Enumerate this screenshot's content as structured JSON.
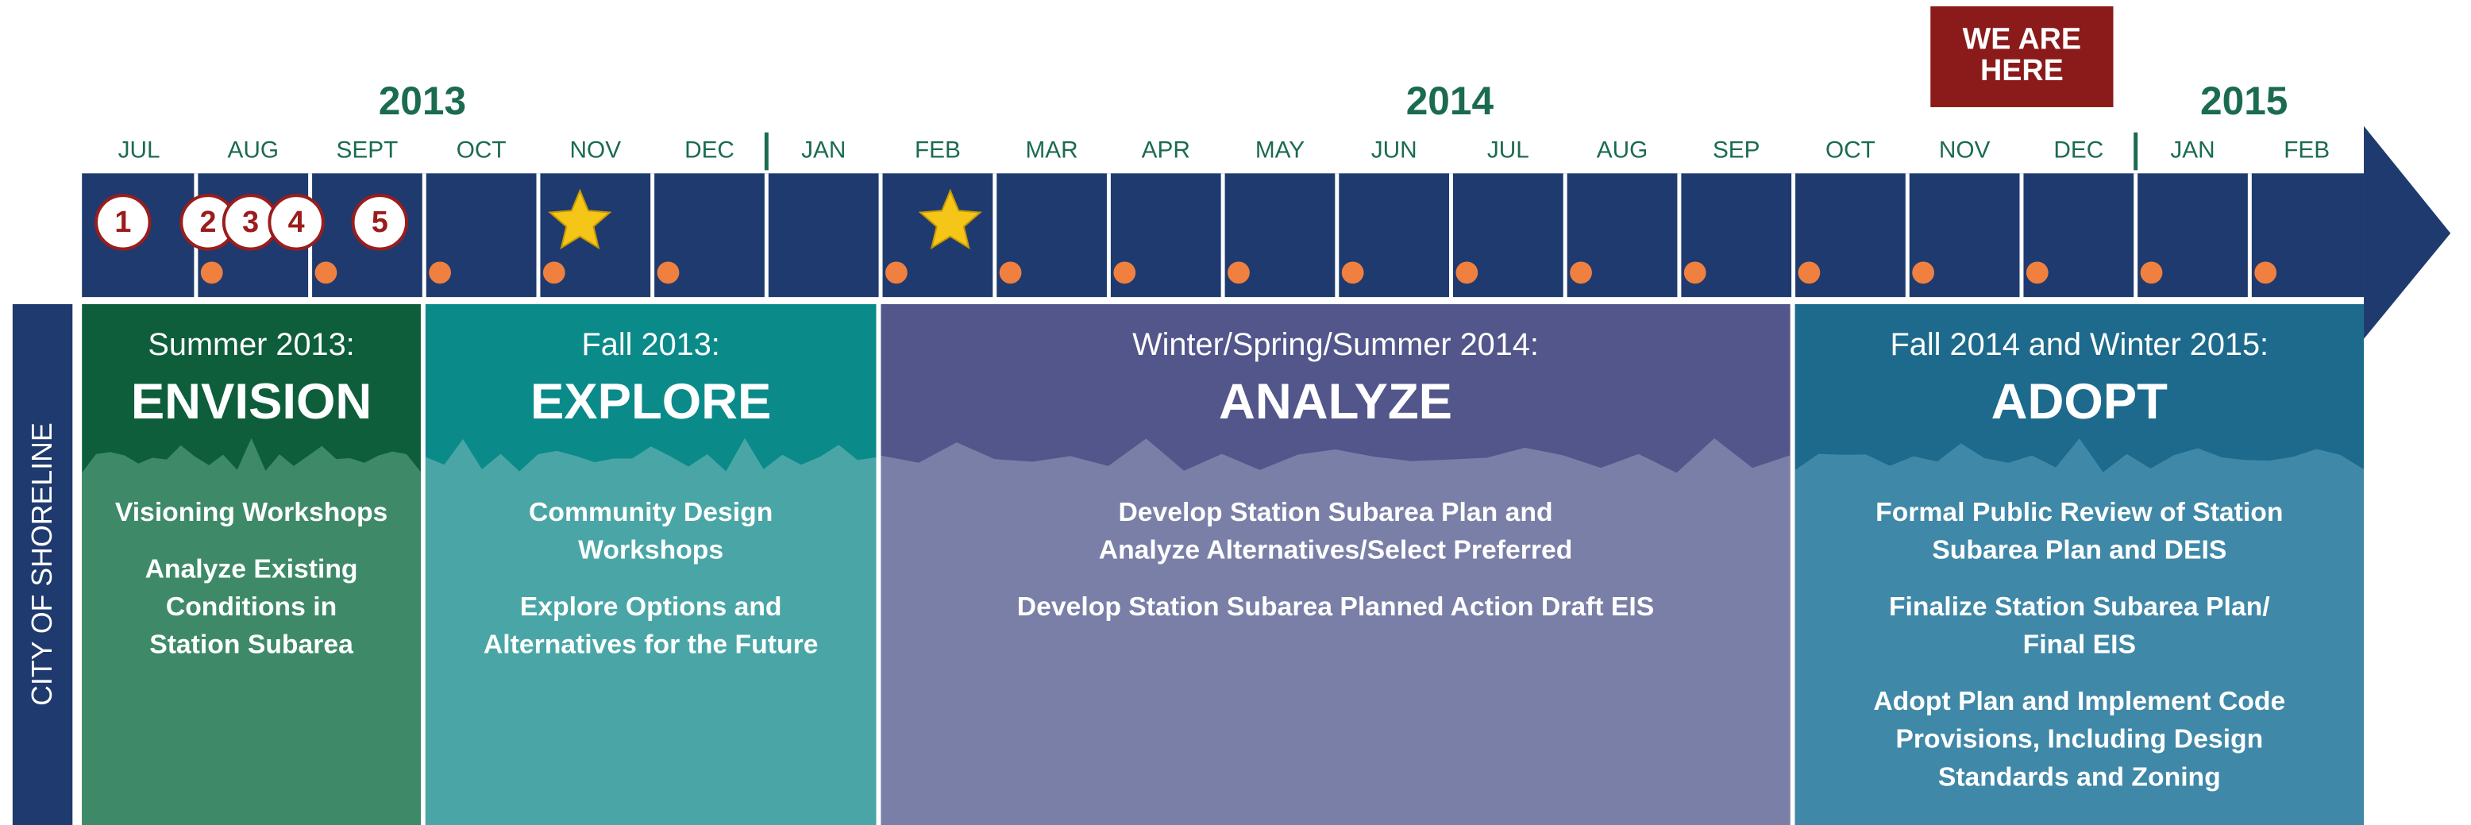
{
  "timeline": {
    "years": [
      "2013",
      "2014",
      "2015"
    ],
    "months": [
      "JUL",
      "AUG",
      "SEPT",
      "OCT",
      "NOV",
      "DEC",
      "JAN",
      "FEB",
      "MAR",
      "APR",
      "MAY",
      "JUN",
      "JUL",
      "AUG",
      "SEP",
      "OCT",
      "NOV",
      "DEC",
      "JAN",
      "FEB"
    ],
    "markers": [
      "1",
      "2",
      "3",
      "4",
      "5"
    ],
    "we_are_here": [
      "WE ARE",
      "HERE"
    ]
  },
  "side_label": "CITY OF SHORELINE",
  "phases": [
    {
      "season": "Summer 2013:",
      "name": "ENVISION",
      "tasks": [
        [
          "Visioning Workshops"
        ],
        [
          "Analyze Existing",
          "Conditions in",
          "Station Subarea"
        ]
      ]
    },
    {
      "season": "Fall 2013:",
      "name": "EXPLORE",
      "tasks": [
        [
          "Community Design",
          "Workshops"
        ],
        [
          "Explore Options and",
          "Alternatives for the Future"
        ]
      ]
    },
    {
      "season": "Winter/Spring/Summer 2014:",
      "name": "ANALYZE",
      "tasks": [
        [
          "Develop Station Subarea Plan and",
          "Analyze Alternatives/Select Preferred"
        ],
        [
          "Develop Station Subarea Planned Action Draft EIS"
        ]
      ]
    },
    {
      "season": "Fall 2014 and Winter 2015:",
      "name": "ADOPT",
      "tasks": [
        [
          "Formal Public Review of Station",
          "Subarea Plan and DEIS"
        ],
        [
          "Finalize Station Subarea Plan/",
          "Final EIS"
        ],
        [
          "Adopt Plan and Implement Code",
          "Provisions, Including Design",
          "Standards and Zoning"
        ]
      ]
    }
  ]
}
